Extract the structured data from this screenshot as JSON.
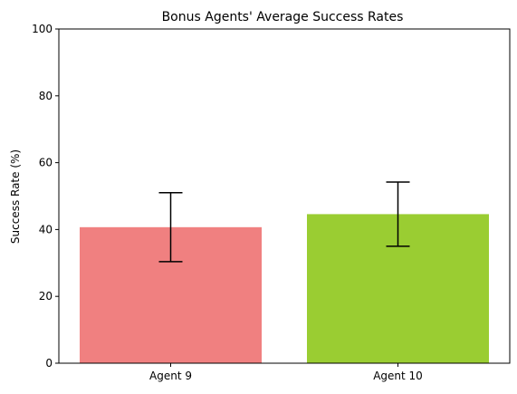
{
  "chart_data": {
    "type": "bar",
    "title": "Bonus Agents' Average Success Rates",
    "xlabel": "",
    "ylabel": "Success Rate (%)",
    "ylim": [
      0,
      100
    ],
    "yticks": [
      0,
      20,
      40,
      60,
      80,
      100
    ],
    "categories": [
      "Agent 9",
      "Agent 10"
    ],
    "values": [
      40.7,
      44.6
    ],
    "error_low": [
      30.4,
      35.0
    ],
    "error_high": [
      51.0,
      54.2
    ],
    "colors": [
      "#F08080",
      "#9ACD32"
    ],
    "error_color": "#000000",
    "grid": false,
    "legend": "none"
  }
}
